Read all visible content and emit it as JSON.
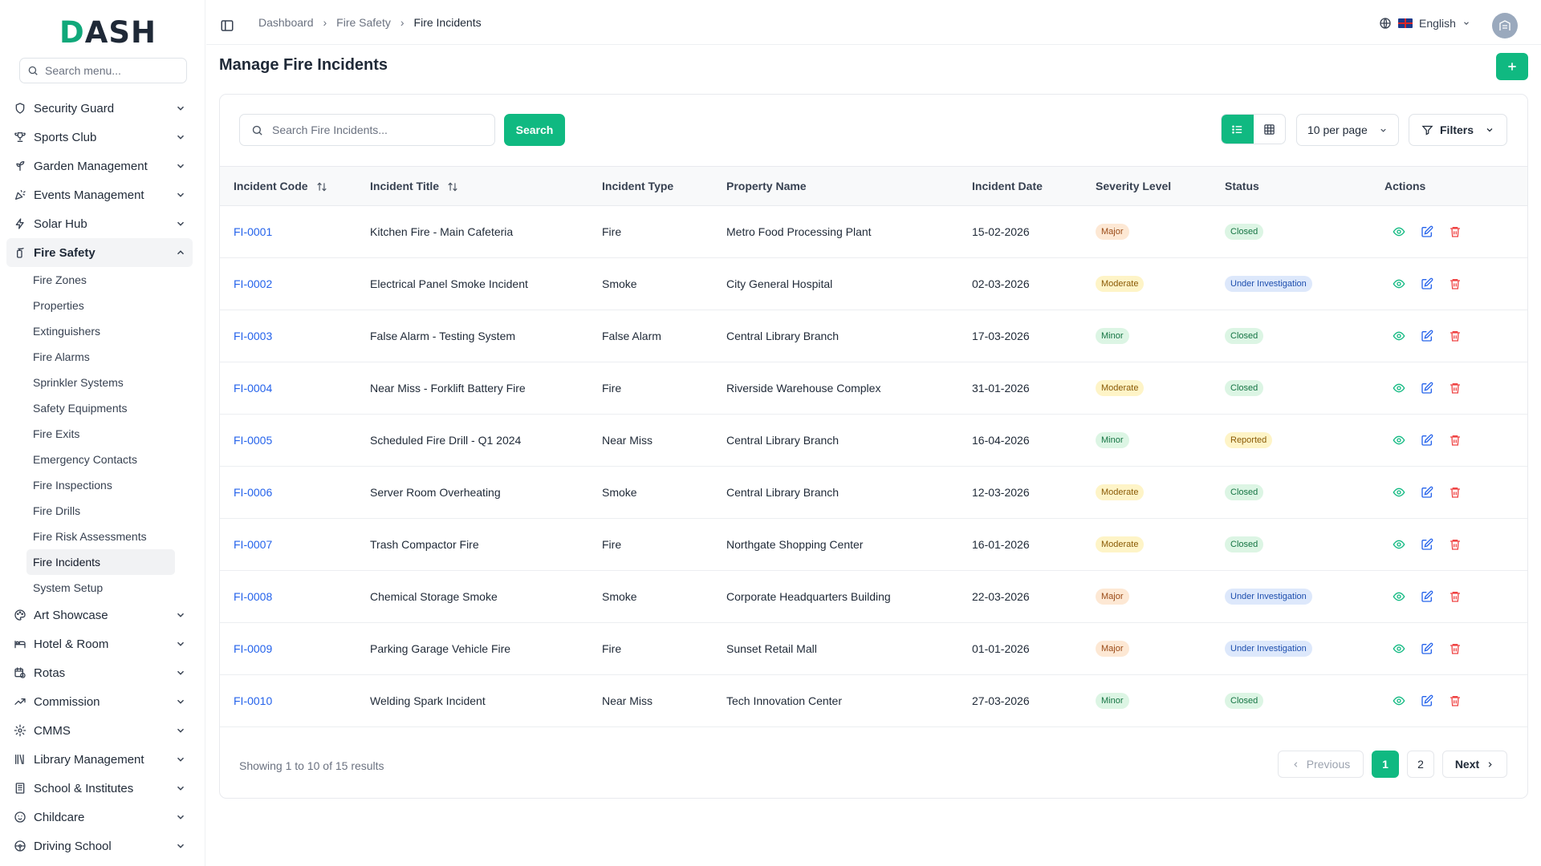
{
  "app": {
    "logo_prefix": "D",
    "logo_rest": "ASH"
  },
  "sidebar": {
    "search_placeholder": "Search menu...",
    "items": [
      {
        "label": "Security Guard",
        "icon": "shield-icon"
      },
      {
        "label": "Sports Club",
        "icon": "trophy-icon"
      },
      {
        "label": "Garden Management",
        "icon": "sprout-icon"
      },
      {
        "label": "Events Management",
        "icon": "party-icon"
      },
      {
        "label": "Solar Hub",
        "icon": "bolt-icon"
      },
      {
        "label": "Fire Safety",
        "icon": "fire-extinguisher-icon"
      }
    ],
    "fire_safety_sub": [
      "Fire Zones",
      "Properties",
      "Extinguishers",
      "Fire Alarms",
      "Sprinkler Systems",
      "Safety Equipments",
      "Fire Exits",
      "Emergency Contacts",
      "Fire Inspections",
      "Fire Drills",
      "Fire Risk Assessments",
      "Fire Incidents",
      "System Setup"
    ],
    "items_after": [
      {
        "label": "Art Showcase",
        "icon": "palette-icon"
      },
      {
        "label": "Hotel & Room",
        "icon": "bed-icon"
      },
      {
        "label": "Rotas",
        "icon": "calendar-clock-icon"
      },
      {
        "label": "Commission",
        "icon": "trend-icon"
      },
      {
        "label": "CMMS",
        "icon": "cog-icon"
      },
      {
        "label": "Library Management",
        "icon": "library-icon"
      },
      {
        "label": "School & Institutes",
        "icon": "building-icon"
      },
      {
        "label": "Childcare",
        "icon": "baby-icon"
      },
      {
        "label": "Driving School",
        "icon": "steering-wheel-icon"
      }
    ]
  },
  "topbar": {
    "breadcrumb": [
      "Dashboard",
      "Fire Safety",
      "Fire Incidents"
    ],
    "language": "English"
  },
  "main": {
    "title": "Manage Fire Incidents",
    "search_placeholder": "Search Fire Incidents...",
    "search_label": "Search",
    "per_page": "10 per page",
    "filters_label": "Filters",
    "columns": [
      "Incident Code",
      "Incident Title",
      "Incident Type",
      "Property Name",
      "Incident Date",
      "Severity Level",
      "Status",
      "Actions"
    ],
    "rows": [
      {
        "code": "FI-0001",
        "title": "Kitchen Fire - Main Cafeteria",
        "type": "Fire",
        "property": "Metro Food Processing Plant",
        "date": "15-02-2026",
        "severity": "Major",
        "status": "Closed"
      },
      {
        "code": "FI-0002",
        "title": "Electrical Panel Smoke Incident",
        "type": "Smoke",
        "property": "City General Hospital",
        "date": "02-03-2026",
        "severity": "Moderate",
        "status": "Under Investigation"
      },
      {
        "code": "FI-0003",
        "title": "False Alarm - Testing System",
        "type": "False Alarm",
        "property": "Central Library Branch",
        "date": "17-03-2026",
        "severity": "Minor",
        "status": "Closed"
      },
      {
        "code": "FI-0004",
        "title": "Near Miss - Forklift Battery Fire",
        "type": "Fire",
        "property": "Riverside Warehouse Complex",
        "date": "31-01-2026",
        "severity": "Moderate",
        "status": "Closed"
      },
      {
        "code": "FI-0005",
        "title": "Scheduled Fire Drill - Q1 2024",
        "type": "Near Miss",
        "property": "Central Library Branch",
        "date": "16-04-2026",
        "severity": "Minor",
        "status": "Reported"
      },
      {
        "code": "FI-0006",
        "title": "Server Room Overheating",
        "type": "Smoke",
        "property": "Central Library Branch",
        "date": "12-03-2026",
        "severity": "Moderate",
        "status": "Closed"
      },
      {
        "code": "FI-0007",
        "title": "Trash Compactor Fire",
        "type": "Fire",
        "property": "Northgate Shopping Center",
        "date": "16-01-2026",
        "severity": "Moderate",
        "status": "Closed"
      },
      {
        "code": "FI-0008",
        "title": "Chemical Storage Smoke",
        "type": "Smoke",
        "property": "Corporate Headquarters Building",
        "date": "22-03-2026",
        "severity": "Major",
        "status": "Under Investigation"
      },
      {
        "code": "FI-0009",
        "title": "Parking Garage Vehicle Fire",
        "type": "Fire",
        "property": "Sunset Retail Mall",
        "date": "01-01-2026",
        "severity": "Major",
        "status": "Under Investigation"
      },
      {
        "code": "FI-0010",
        "title": "Welding Spark Incident",
        "type": "Near Miss",
        "property": "Tech Innovation Center",
        "date": "27-03-2026",
        "severity": "Minor",
        "status": "Closed"
      }
    ],
    "footer": "Showing 1 to 10 of 15 results",
    "pagination": {
      "previous": "Previous",
      "pages": [
        "1",
        "2"
      ],
      "next": "Next"
    }
  },
  "colors": {
    "accent": "#10b981",
    "link": "#2563eb",
    "view_icon": "#10b981",
    "edit_icon": "#2563eb",
    "delete_icon": "#ef4444"
  }
}
